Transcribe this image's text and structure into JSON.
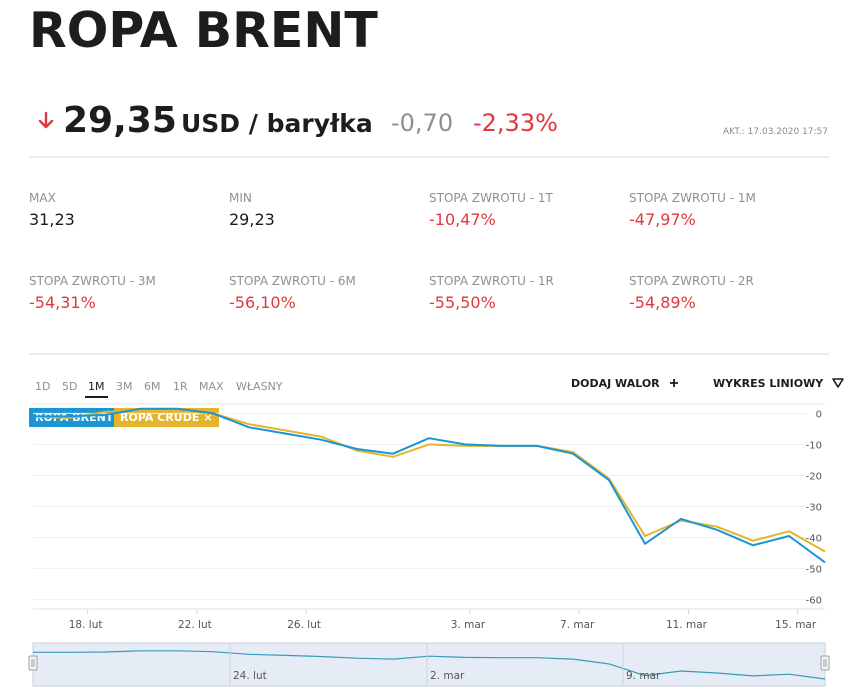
{
  "header": {
    "title": "ROPA BRENT"
  },
  "quote": {
    "price": "29,35",
    "unit": "USD / baryłka",
    "change": "-0,70",
    "change_pct": "-2,33%",
    "direction_icon": "arrow-down-icon",
    "updated_label": "AKT.:",
    "updated_value": "17.03.2020 17:57"
  },
  "stats": [
    {
      "label": "MAX",
      "value": "31,23",
      "tone": "neutral"
    },
    {
      "label": "MIN",
      "value": "29,23",
      "tone": "neutral"
    },
    {
      "label": "STOPA ZWROTU - 1T",
      "value": "-10,47%",
      "tone": "neg"
    },
    {
      "label": "STOPA ZWROTU - 1M",
      "value": "-47,97%",
      "tone": "neg"
    },
    {
      "label": "STOPA ZWROTU - 3M",
      "value": "-54,31%",
      "tone": "neg"
    },
    {
      "label": "STOPA ZWROTU - 6M",
      "value": "-56,10%",
      "tone": "neg"
    },
    {
      "label": "STOPA ZWROTU - 1R",
      "value": "-55,50%",
      "tone": "neg"
    },
    {
      "label": "STOPA ZWROTU - 2R",
      "value": "-54,89%",
      "tone": "neg"
    }
  ],
  "toolbar": {
    "ranges": [
      "1D",
      "5D",
      "1M",
      "3M",
      "6M",
      "1R",
      "MAX",
      "WŁASNY"
    ],
    "active_range": "1M",
    "add_label": "DODAJ WALOR",
    "add_icon": "plus-icon",
    "chart_type_label": "WYKRES LINIOWY",
    "chart_type_icon": "triangle-down-icon"
  },
  "legend": {
    "brent": {
      "label": "ROPA BRENT",
      "color": "#1a96d4"
    },
    "crude": {
      "label": "ROPA CRUDE",
      "color": "#e5b32c",
      "remove_icon": "close-icon",
      "remove_glyph": "×"
    }
  },
  "chart_data": {
    "type": "line",
    "ylabel": "",
    "ylim": [
      -63,
      3
    ],
    "yticks": [
      0,
      -10,
      -20,
      -30,
      -40,
      -50,
      -60
    ],
    "x_range": [
      "2020-02-16",
      "2020-03-16"
    ],
    "xticks": [
      {
        "date": "2020-02-18",
        "label": "18. lut"
      },
      {
        "date": "2020-02-22",
        "label": "22. lut"
      },
      {
        "date": "2020-02-26",
        "label": "26. lut"
      },
      {
        "date": "2020-03-03",
        "label": "3. mar"
      },
      {
        "date": "2020-03-07",
        "label": "7. mar"
      },
      {
        "date": "2020-03-11",
        "label": "11. mar"
      },
      {
        "date": "2020-03-15",
        "label": "15. mar"
      }
    ],
    "grid": true,
    "series": [
      {
        "name": "ROPA BRENT",
        "color": "#1a96d4",
        "points": [
          [
            "2020-02-16",
            -1
          ],
          [
            "2020-02-17",
            -1
          ],
          [
            "2020-02-18",
            -0.5
          ],
          [
            "2020-02-19",
            1.5
          ],
          [
            "2020-02-20",
            1.5
          ],
          [
            "2020-02-21",
            0
          ],
          [
            "2020-02-22",
            -4.5
          ],
          [
            "2020-02-23",
            -6.5
          ],
          [
            "2020-02-24",
            -8.5
          ],
          [
            "2020-02-25",
            -11.5
          ],
          [
            "2020-02-26",
            -13
          ],
          [
            "2020-02-27",
            -8
          ],
          [
            "2020-02-28",
            -10
          ],
          [
            "2020-03-01",
            -10.5
          ],
          [
            "2020-03-02",
            -10.5
          ],
          [
            "2020-03-03",
            -13
          ],
          [
            "2020-03-04",
            -21.5
          ],
          [
            "2020-03-05",
            -42
          ],
          [
            "2020-03-06",
            -34
          ],
          [
            "2020-03-07",
            -37.5
          ],
          [
            "2020-03-08",
            -42.5
          ],
          [
            "2020-03-09",
            -39.5
          ],
          [
            "2020-03-10",
            -48
          ]
        ]
      },
      {
        "name": "ROPA CRUDE",
        "color": "#e5b32c",
        "points": [
          [
            "2020-02-16",
            -1
          ],
          [
            "2020-02-17",
            -1.5
          ],
          [
            "2020-02-18",
            0.5
          ],
          [
            "2020-02-19",
            0.5
          ],
          [
            "2020-02-20",
            1
          ],
          [
            "2020-02-21",
            0
          ],
          [
            "2020-02-22",
            -3.5
          ],
          [
            "2020-02-23",
            -5.5
          ],
          [
            "2020-02-24",
            -7.5
          ],
          [
            "2020-02-25",
            -12
          ],
          [
            "2020-02-26",
            -14
          ],
          [
            "2020-02-27",
            -10
          ],
          [
            "2020-02-28",
            -10.5
          ],
          [
            "2020-03-01",
            -10.5
          ],
          [
            "2020-03-02",
            -10.5
          ],
          [
            "2020-03-03",
            -12.5
          ],
          [
            "2020-03-04",
            -21
          ],
          [
            "2020-03-05",
            -39.5
          ],
          [
            "2020-03-06",
            -34.5
          ],
          [
            "2020-03-07",
            -36.5
          ],
          [
            "2020-03-08",
            -41
          ],
          [
            "2020-03-09",
            -38
          ],
          [
            "2020-03-10",
            -44.5
          ]
        ]
      }
    ],
    "navigator": {
      "labels": [
        "24. lut",
        "2. mar",
        "9. mar"
      ],
      "values": [
        -1,
        -1,
        -0.5,
        1.5,
        1.5,
        0,
        -4.5,
        -6.5,
        -8.5,
        -11.5,
        -13,
        -8,
        -10,
        -10.5,
        -10.5,
        -13,
        -21.5,
        -42,
        -34,
        -37.5,
        -42.5,
        -39.5,
        -48
      ]
    }
  }
}
